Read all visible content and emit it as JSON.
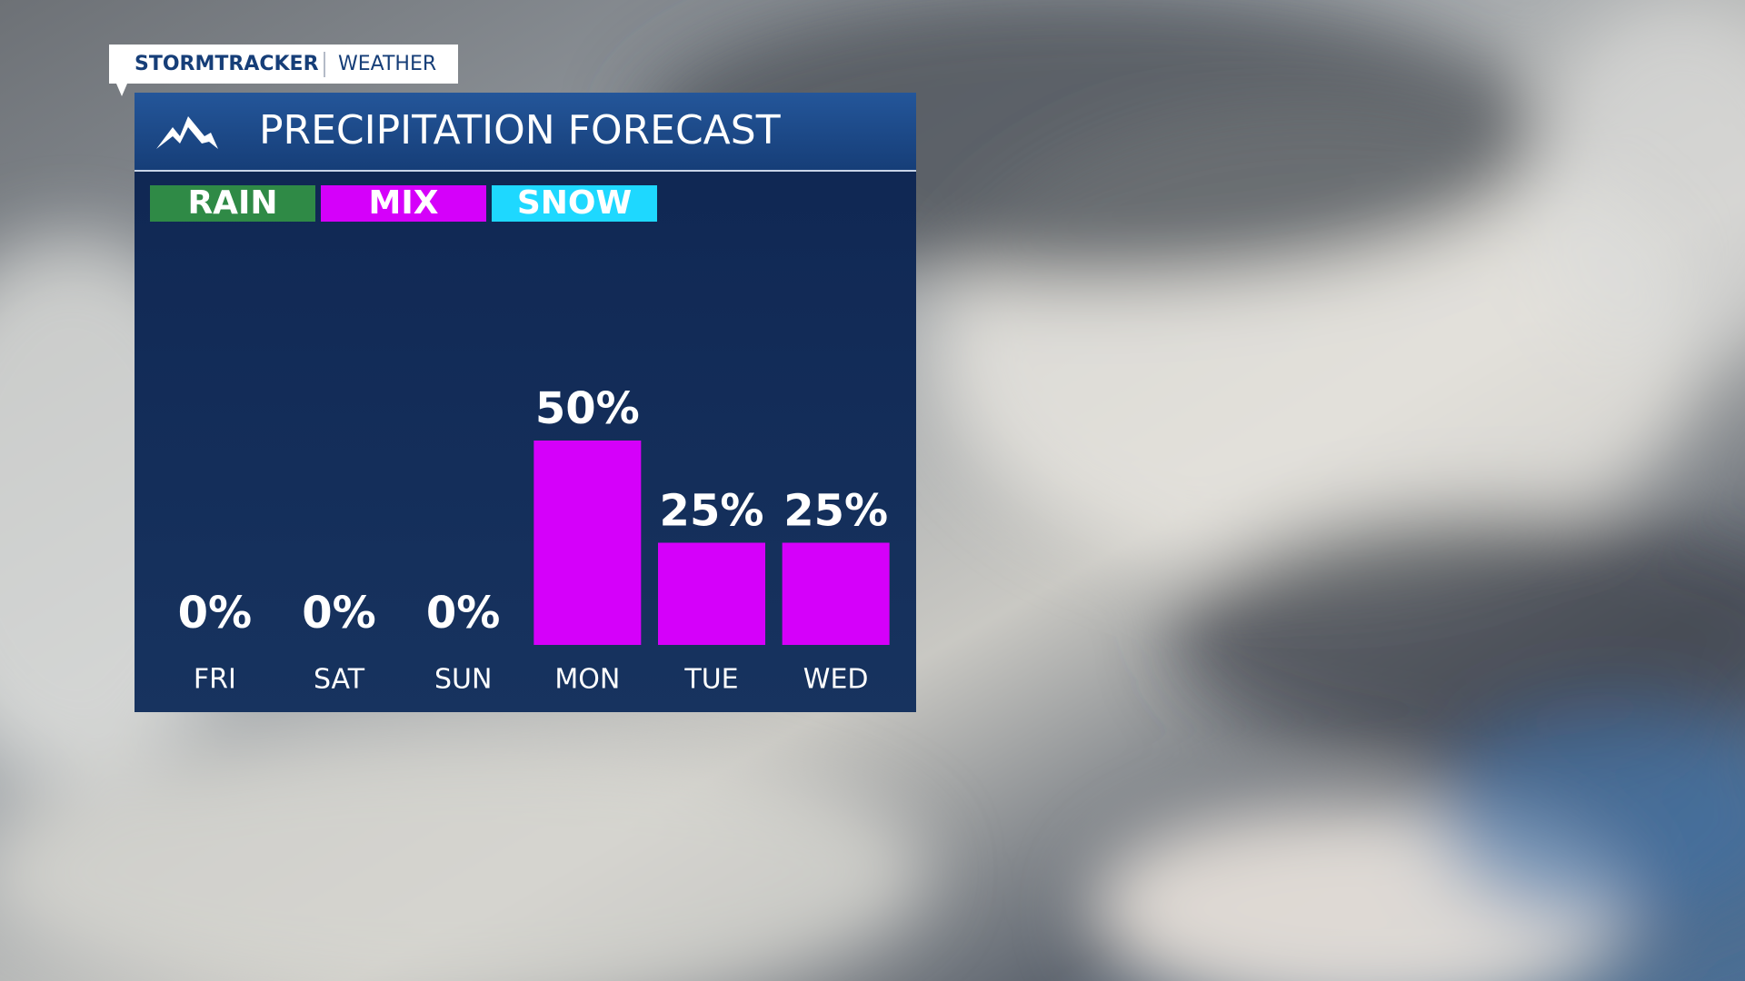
{
  "brand": {
    "name": "STORMTRACKER",
    "section": "WEATHER"
  },
  "chart_data": {
    "type": "bar",
    "title": "PRECIPITATION FORECAST",
    "legend": [
      {
        "name": "RAIN",
        "color": "#2f8a46"
      },
      {
        "name": "MIX",
        "color": "#d500fa"
      },
      {
        "name": "SNOW",
        "color": "#1ed8ff"
      }
    ],
    "categories": [
      "FRI",
      "SAT",
      "SUN",
      "MON",
      "TUE",
      "WED"
    ],
    "values": [
      0,
      0,
      0,
      50,
      25,
      25
    ],
    "value_labels": [
      "0%",
      "0%",
      "0%",
      "50%",
      "25%",
      "25%"
    ],
    "color": "#d500fa"
  }
}
